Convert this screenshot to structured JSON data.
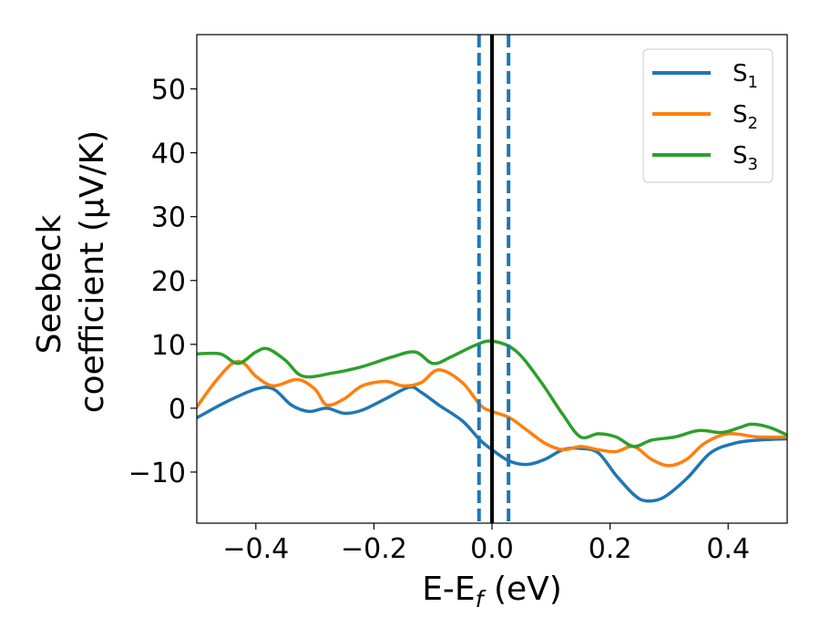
{
  "chart_data": {
    "type": "line",
    "xlabel": "E-E",
    "xlabel_sub": "f",
    "xlabel_unit": "(eV)",
    "ylabel_line1": "Seebeck",
    "ylabel_line2": "coefficient  (μV/K)",
    "xlim": [
      -0.5,
      0.5
    ],
    "ylim": [
      -18,
      58.5
    ],
    "x_ticks": [
      -0.4,
      -0.2,
      0.0,
      0.2,
      0.4
    ],
    "x_tick_labels": [
      "−0.4",
      "−0.2",
      "0.0",
      "0.2",
      "0.4"
    ],
    "y_ticks": [
      -10,
      0,
      10,
      20,
      30,
      40,
      50
    ],
    "y_tick_labels": [
      "−10",
      "0",
      "10",
      "20",
      "30",
      "40",
      "50"
    ],
    "grid": false,
    "legend_position": "top-right",
    "series": [
      {
        "name": "S",
        "name_sub": "1",
        "color": "#1f77b4",
        "x": [
          -0.5,
          -0.45,
          -0.4,
          -0.37,
          -0.34,
          -0.31,
          -0.28,
          -0.25,
          -0.22,
          -0.18,
          -0.14,
          -0.12,
          -0.09,
          -0.05,
          -0.02,
          0.0,
          0.03,
          0.06,
          0.09,
          0.12,
          0.15,
          0.18,
          0.21,
          0.24,
          0.26,
          0.29,
          0.33,
          0.37,
          0.41,
          0.45,
          0.5
        ],
        "y": [
          -1.5,
          1.0,
          3.0,
          3.0,
          0.5,
          -0.5,
          0.0,
          -0.8,
          -0.3,
          1.5,
          3.3,
          2.5,
          0.5,
          -2.0,
          -5.0,
          -6.5,
          -8.3,
          -8.8,
          -8.0,
          -6.5,
          -6.3,
          -7.0,
          -10.5,
          -13.5,
          -14.5,
          -14.0,
          -11.0,
          -7.0,
          -5.5,
          -5.0,
          -4.8
        ]
      },
      {
        "name": "S",
        "name_sub": "2",
        "color": "#ff7f0e",
        "x": [
          -0.5,
          -0.47,
          -0.44,
          -0.42,
          -0.4,
          -0.37,
          -0.33,
          -0.3,
          -0.28,
          -0.25,
          -0.22,
          -0.18,
          -0.15,
          -0.12,
          -0.09,
          -0.05,
          -0.02,
          0.0,
          0.03,
          0.06,
          0.09,
          0.12,
          0.15,
          0.18,
          0.21,
          0.24,
          0.27,
          0.3,
          0.33,
          0.36,
          0.4,
          0.45,
          0.5
        ],
        "y": [
          0.2,
          4.0,
          7.0,
          7.0,
          5.0,
          3.5,
          4.5,
          3.0,
          0.5,
          1.5,
          3.5,
          4.2,
          3.5,
          4.0,
          6.0,
          4.0,
          0.5,
          -0.5,
          -1.5,
          -3.5,
          -5.5,
          -6.5,
          -6.0,
          -6.5,
          -6.8,
          -6.0,
          -8.0,
          -9.0,
          -8.0,
          -5.5,
          -4.0,
          -4.5,
          -4.5
        ]
      },
      {
        "name": "S",
        "name_sub": "3",
        "color": "#2ca02c",
        "x": [
          -0.5,
          -0.46,
          -0.43,
          -0.4,
          -0.38,
          -0.35,
          -0.32,
          -0.27,
          -0.22,
          -0.17,
          -0.13,
          -0.1,
          -0.07,
          -0.03,
          0.0,
          0.04,
          0.08,
          0.12,
          0.15,
          0.18,
          0.21,
          0.24,
          0.27,
          0.31,
          0.35,
          0.39,
          0.42,
          0.44,
          0.47,
          0.5
        ],
        "y": [
          8.5,
          8.5,
          7.0,
          8.8,
          9.3,
          7.5,
          5.0,
          5.5,
          6.5,
          8.0,
          8.8,
          7.0,
          8.0,
          9.8,
          10.5,
          9.0,
          4.5,
          -1.0,
          -4.5,
          -4.0,
          -4.5,
          -6.0,
          -5.0,
          -4.5,
          -3.5,
          -3.8,
          -3.0,
          -2.5,
          -3.0,
          -4.2
        ]
      }
    ],
    "vlines": [
      {
        "x": -0.022,
        "color": "#1f77b4",
        "style": "dashed"
      },
      {
        "x": 0.028,
        "color": "#1f77b4",
        "style": "dashed"
      },
      {
        "x": 0.0,
        "color": "#000000",
        "style": "solid"
      }
    ]
  }
}
